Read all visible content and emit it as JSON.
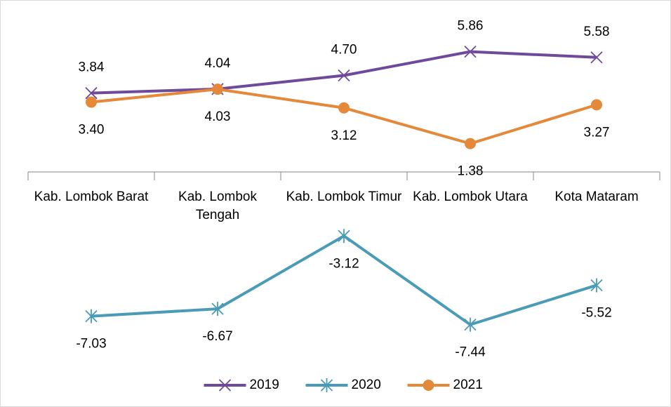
{
  "chart_data": {
    "type": "line",
    "categories": [
      "Kab. Lombok Barat",
      "Kab. Lombok Tengah",
      "Kab. Lombok Timur",
      "Kab. Lombok Utara",
      "Kota Mataram"
    ],
    "series": [
      {
        "name": "2019",
        "color": "#6f4a9a",
        "marker": "x",
        "values": [
          3.84,
          4.04,
          4.7,
          5.86,
          5.58
        ],
        "value_labels": [
          "3.84",
          "4.04",
          "4.70",
          "5.86",
          "5.58"
        ]
      },
      {
        "name": "2020",
        "color": "#4a9bb6",
        "marker": "asterisk",
        "values": [
          -7.03,
          -6.67,
          -3.12,
          -7.44,
          -5.52
        ],
        "value_labels": [
          "-7.03",
          "-6.67",
          "-3.12",
          "-7.44",
          "-5.52"
        ]
      },
      {
        "name": "2021",
        "color": "#e4883a",
        "marker": "circle",
        "values": [
          3.4,
          4.03,
          3.12,
          1.38,
          3.27
        ],
        "value_labels": [
          "3.40",
          "4.03",
          "3.12",
          "1.38",
          "3.27"
        ]
      }
    ],
    "ylim": [
      -8,
      8
    ],
    "legend": "bottom"
  }
}
